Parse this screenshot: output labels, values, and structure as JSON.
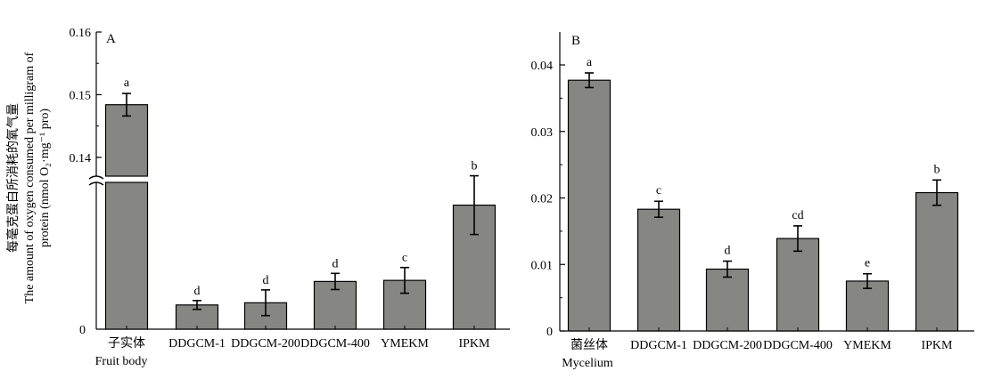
{
  "chart_data": [
    {
      "type": "bar",
      "panel_label": "A",
      "categories": [
        "子实体",
        "DDGCM-1",
        "DDGCM-200",
        "DDGCM-400",
        "YMEKM",
        "IPKM"
      ],
      "category_sublabels": [
        "Fruit body",
        "",
        "",
        "",
        "",
        ""
      ],
      "values": [
        0.1484,
        0.0066,
        0.0072,
        0.013,
        0.0133,
        0.0338
      ],
      "errors": [
        0.0018,
        0.0012,
        0.0035,
        0.0022,
        0.0035,
        0.008
      ],
      "significance": [
        "a",
        "d",
        "d",
        "d",
        "c",
        "b"
      ],
      "broken_axis": true,
      "upper_segment_ylim": [
        0.137,
        0.16
      ],
      "yticks_upper": [
        0.14,
        0.15,
        0.16
      ],
      "yticks_lower": [
        0
      ],
      "ylabel_cn": "每毫克蛋白所消耗的氧气量",
      "ylabel_en_line1": "The amount of oxygen consumed per milligram of",
      "ylabel_en_line2": "protein (nmol O₂·mg⁻¹ pro)",
      "bar_color": "#868782"
    },
    {
      "type": "bar",
      "panel_label": "B",
      "categories": [
        "菌丝体",
        "DDGCM-1",
        "DDGCM-200",
        "DDGCM-400",
        "YMEKM",
        "IPKM"
      ],
      "category_sublabels": [
        "Mycelium",
        "",
        "",
        "",
        "",
        ""
      ],
      "values": [
        0.0377,
        0.0183,
        0.0093,
        0.0139,
        0.0075,
        0.0208
      ],
      "errors": [
        0.0011,
        0.0012,
        0.0012,
        0.0019,
        0.0011,
        0.0019
      ],
      "significance": [
        "a",
        "c",
        "d",
        "cd",
        "e",
        "b"
      ],
      "ylim": [
        0,
        0.04
      ],
      "yticks": [
        "0",
        "0.01",
        "0.02",
        "0.03",
        "0.04"
      ],
      "bar_color": "#868782"
    }
  ]
}
